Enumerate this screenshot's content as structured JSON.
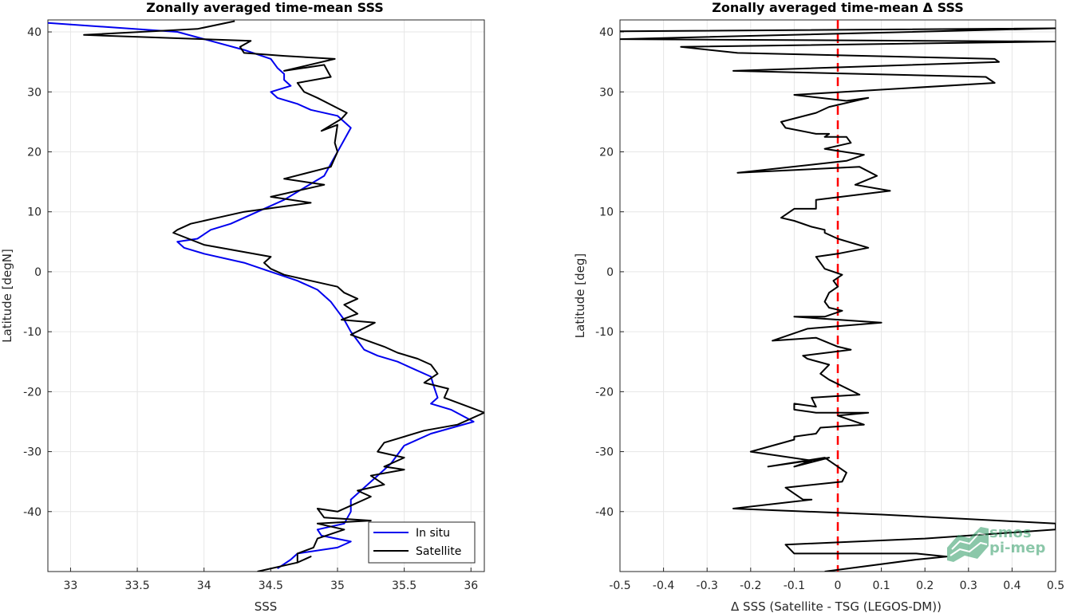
{
  "colors": {
    "insitu": "#0000ee",
    "satellite": "#000000",
    "zero_line": "#ff0000",
    "grid": "#e6e6e6",
    "logo": "#2e9a63"
  },
  "logo": {
    "line1": "smos",
    "line2": "pi-mep"
  },
  "chart_data": [
    {
      "type": "line",
      "title": "Zonally averaged time-mean SSS",
      "xlabel": "SSS",
      "ylabel": "Latitude [degN]",
      "xlim": [
        32.83,
        36.1
      ],
      "ylim": [
        -50,
        42
      ],
      "xticks": [
        33,
        33.5,
        34,
        34.5,
        35,
        35.5,
        36
      ],
      "xtick_labels": [
        "33",
        "33.5",
        "34",
        "34.5",
        "35",
        "35.5",
        "36"
      ],
      "yticks": [
        40,
        30,
        20,
        10,
        0,
        -10,
        -20,
        -30,
        -40
      ],
      "ytick_labels": [
        "40",
        "30",
        "20",
        "10",
        "0",
        "-10",
        "-20",
        "-30",
        "-40"
      ],
      "grid": true,
      "legend": {
        "placement": "bottom-right",
        "entries": [
          "In situ",
          "Satellite"
        ]
      },
      "series": [
        {
          "name": "In situ",
          "color": "#0000ee",
          "x": [
            32.83,
            33.8,
            34.05,
            34.3,
            34.5,
            34.55,
            34.6,
            34.6,
            34.65,
            34.5,
            34.55,
            34.7,
            34.8,
            35,
            35.05,
            35.1,
            35.05,
            35,
            34.95,
            34.9,
            34.75,
            34.6,
            34.4,
            34.2,
            34.05,
            33.95,
            33.8,
            33.85,
            34,
            34.3,
            34.5,
            34.7,
            34.85,
            34.95,
            35,
            35.05,
            35.1,
            35.15,
            35.2,
            35.3,
            35.45,
            35.55,
            35.7,
            35.72,
            35.75,
            35.7,
            35.85,
            36.02,
            35.7,
            35.5,
            35.4,
            35.3,
            35.2,
            35.1,
            35.1,
            35.05,
            34.85,
            34.88,
            35.1,
            35,
            34.7,
            34.65,
            34.55
          ],
          "y": [
            41.5,
            40,
            38.5,
            37,
            35.5,
            34,
            33,
            32,
            31,
            30,
            29,
            28,
            27,
            26,
            25,
            24,
            22,
            20,
            18,
            16,
            14,
            12,
            10,
            8,
            7,
            5.5,
            5,
            4,
            3,
            1.5,
            0,
            -1.5,
            -3,
            -5,
            -6.5,
            -8,
            -10,
            -11.5,
            -13,
            -14,
            -15,
            -16,
            -17.5,
            -19,
            -21,
            -22,
            -23,
            -25,
            -27,
            -29,
            -32,
            -34,
            -36,
            -38,
            -40,
            -42,
            -43,
            -44,
            -45,
            -46,
            -47,
            -48,
            -49.5
          ]
        },
        {
          "name": "Satellite",
          "color": "#000000",
          "x": [
            34.23,
            33.95,
            33.1,
            34.35,
            34.27,
            34.3,
            34.6,
            34.98,
            34.6,
            34.9,
            34.95,
            34.7,
            34.75,
            34.85,
            35.07,
            35.03,
            34.88,
            35,
            34.98,
            35,
            34.95,
            34.6,
            34.9,
            34.5,
            34.8,
            34.3,
            34.1,
            33.9,
            33.8,
            33.77,
            34,
            34.5,
            34.45,
            34.5,
            34.6,
            34.8,
            35,
            35.05,
            35.15,
            35.05,
            35.15,
            35.03,
            35.28,
            35.1,
            35.35,
            35.45,
            35.6,
            35.7,
            35.75,
            35.65,
            35.83,
            35.8,
            36.1,
            35.9,
            35.65,
            35.35,
            35.3,
            35.5,
            35.35,
            35.5,
            35.25,
            35.35,
            35.15,
            35.25,
            35.1,
            35,
            34.85,
            34.9,
            35.25,
            34.85,
            35.05,
            34.85,
            34.82,
            34.7,
            34.7,
            34.8,
            34.7,
            34.4
          ],
          "y": [
            41.8,
            40.5,
            39.5,
            38.5,
            37.5,
            36.5,
            36,
            35.5,
            33.5,
            34.5,
            32.5,
            31.5,
            30,
            29,
            26.5,
            25.5,
            23.5,
            24.5,
            21.5,
            20,
            17.5,
            15.5,
            14.5,
            12.5,
            11.5,
            10,
            9,
            8,
            7,
            6.5,
            4.5,
            2.5,
            1.5,
            0.5,
            -0.5,
            -1.5,
            -2.5,
            -3.5,
            -4.5,
            -5.5,
            -7,
            -8,
            -8.5,
            -10.5,
            -12.5,
            -13.5,
            -14.5,
            -15.5,
            -17,
            -18.5,
            -19.5,
            -21,
            -23.5,
            -25.5,
            -26.5,
            -28.5,
            -30,
            -31,
            -32.5,
            -33,
            -34,
            -35.5,
            -36.5,
            -37.5,
            -39,
            -40,
            -39.5,
            -41,
            -41.5,
            -42,
            -43,
            -44.5,
            -46,
            -47,
            -48.5,
            -47.5,
            -48.5,
            -50
          ]
        }
      ]
    },
    {
      "type": "line",
      "title": "Zonally averaged time-mean Δ SSS",
      "xlabel": "Δ SSS (Satellite - TSG (LEGOS-DM))",
      "ylabel": "Latitude [deg]",
      "xlim": [
        -0.5,
        0.5
      ],
      "ylim": [
        -50,
        42
      ],
      "xticks": [
        -0.5,
        -0.4,
        -0.3,
        -0.2,
        -0.1,
        0,
        0.1,
        0.2,
        0.3,
        0.4,
        0.5
      ],
      "xtick_labels": [
        "-0.5",
        "-0.4",
        "-0.3",
        "-0.2",
        "-0.1",
        "0",
        "0.1",
        "0.2",
        "0.3",
        "0.4",
        "0.5"
      ],
      "yticks": [
        40,
        30,
        20,
        10,
        0,
        -10,
        -20,
        -30,
        -40
      ],
      "ytick_labels": [
        "40",
        "30",
        "20",
        "10",
        "0",
        "-10",
        "-20",
        "-30",
        "-40"
      ],
      "grid": true,
      "reference_line": {
        "x": 0,
        "style": "dashed",
        "color": "#ff0000"
      },
      "series": [
        {
          "name": "Satellite - TSG",
          "color": "#000000",
          "x": [
            -0.5,
            0.5,
            -0.5,
            0.5,
            -0.36,
            -0.23,
            0.36,
            0.37,
            -0.24,
            0.34,
            0.36,
            -0.1,
            0.02,
            0.07,
            -0.02,
            -0.05,
            -0.13,
            -0.12,
            -0.05,
            -0.02,
            -0.03,
            0.02,
            0.03,
            -0.03,
            0.06,
            0.02,
            -0.23,
            0.05,
            0.09,
            0.04,
            0.12,
            -0.05,
            -0.05,
            -0.1,
            -0.13,
            -0.1,
            -0.06,
            -0.03,
            -0.03,
            0,
            0.07,
            0,
            -0.05,
            -0.03,
            0.01,
            -0.01,
            0,
            -0.02,
            -0.03,
            -0.02,
            0.01,
            -0.03,
            -0.1,
            0.1,
            -0.07,
            -0.15,
            -0.05,
            0,
            0.03,
            -0.08,
            -0.07,
            -0.02,
            -0.04,
            -0.02,
            0.05,
            -0.06,
            -0.05,
            -0.1,
            -0.1,
            -0.05,
            0.07,
            0,
            0.06,
            -0.04,
            -0.05,
            -0.1,
            -0.1,
            -0.2,
            -0.06,
            -0.1,
            -0.02,
            -0.16,
            -0.03,
            0.02,
            0.01,
            -0.12,
            -0.1,
            -0.08,
            -0.06,
            -0.24,
            0.1,
            0.5,
            0.5,
            0.2,
            -0.12,
            -0.1,
            0.18,
            0.25,
            0.18,
            -0.03
          ],
          "y": [
            40.1,
            40.6,
            38.8,
            38.4,
            37.5,
            36.5,
            35.5,
            35,
            33.5,
            32.5,
            31.5,
            29.5,
            28.5,
            29,
            27.5,
            26.5,
            25,
            24,
            23,
            23,
            22.5,
            22.5,
            21.5,
            20.5,
            19.5,
            18.5,
            16.5,
            17.5,
            16,
            14.5,
            13.5,
            12,
            10.5,
            10.5,
            9,
            8.5,
            7.5,
            7,
            6.5,
            5.5,
            4,
            3,
            2.5,
            0.5,
            -0.5,
            -1.5,
            -2.5,
            -3.5,
            -5,
            -6,
            -6.5,
            -7.5,
            -7.5,
            -8.5,
            -9.5,
            -11.5,
            -11,
            -12.5,
            -13,
            -14,
            -14.5,
            -15.5,
            -17,
            -18,
            -20.5,
            -21,
            -22.5,
            -22,
            -23,
            -23.5,
            -23.5,
            -24,
            -25.5,
            -26,
            -27,
            -27.5,
            -28,
            -30,
            -31.5,
            -32.5,
            -31,
            -32.5,
            -31,
            -33.5,
            -35,
            -36,
            -37,
            -38,
            -38,
            -39.5,
            -40.5,
            -42,
            -43,
            -44.5,
            -45.5,
            -47,
            -47,
            -47.5,
            -48,
            -50
          ]
        }
      ]
    }
  ]
}
